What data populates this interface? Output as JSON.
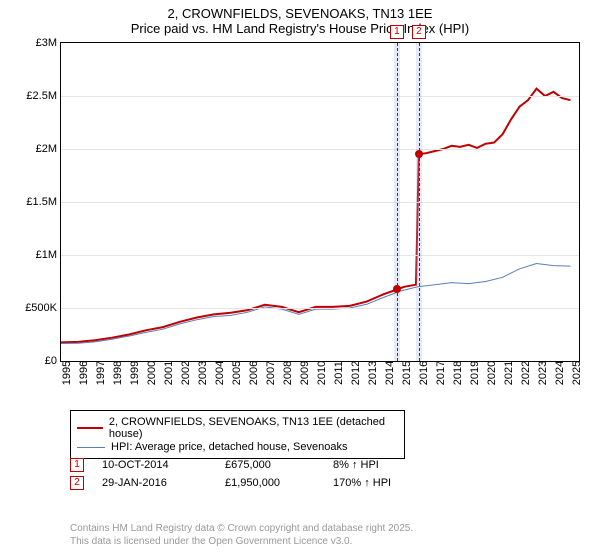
{
  "title": {
    "line1": "2, CROWNFIELDS, SEVENOAKS, TN13 1EE",
    "line2": "Price paid vs. HM Land Registry's House Price Index (HPI)"
  },
  "chart": {
    "type": "line",
    "background_color": "#ffffff",
    "grid_color": "#e5e5e5",
    "border_color": "#000000",
    "xlim": [
      1995,
      2025.5
    ],
    "ylim": [
      0,
      3000000
    ],
    "yticks": [
      {
        "value": 0,
        "label": "£0"
      },
      {
        "value": 500000,
        "label": "£500K"
      },
      {
        "value": 1000000,
        "label": "£1M"
      },
      {
        "value": 1500000,
        "label": "£1.5M"
      },
      {
        "value": 2000000,
        "label": "£2M"
      },
      {
        "value": 2500000,
        "label": "£2.5M"
      },
      {
        "value": 3000000,
        "label": "£3M"
      }
    ],
    "xticks": [
      1995,
      1996,
      1997,
      1998,
      1999,
      2000,
      2001,
      2002,
      2003,
      2004,
      2005,
      2006,
      2007,
      2008,
      2009,
      2010,
      2011,
      2012,
      2013,
      2014,
      2015,
      2016,
      2017,
      2018,
      2019,
      2020,
      2021,
      2022,
      2023,
      2024,
      2025
    ],
    "series": [
      {
        "name": "price_paid",
        "label": "2, CROWNFIELDS, SEVENOAKS, TN13 1EE (detached house)",
        "color": "#c00000",
        "line_width": 2,
        "points": [
          [
            1995,
            175000
          ],
          [
            1996,
            180000
          ],
          [
            1997,
            195000
          ],
          [
            1998,
            220000
          ],
          [
            1999,
            250000
          ],
          [
            2000,
            290000
          ],
          [
            2001,
            320000
          ],
          [
            2002,
            370000
          ],
          [
            2003,
            410000
          ],
          [
            2004,
            440000
          ],
          [
            2005,
            455000
          ],
          [
            2006,
            480000
          ],
          [
            2007,
            530000
          ],
          [
            2008,
            510000
          ],
          [
            2009,
            460000
          ],
          [
            2010,
            510000
          ],
          [
            2011,
            510000
          ],
          [
            2012,
            520000
          ],
          [
            2013,
            560000
          ],
          [
            2014,
            630000
          ],
          [
            2014.8,
            675000
          ],
          [
            2015.2,
            700000
          ],
          [
            2015.9,
            720000
          ],
          [
            2016.07,
            1950000
          ],
          [
            2016.5,
            1960000
          ],
          [
            2017,
            1980000
          ],
          [
            2017.5,
            2000000
          ],
          [
            2018,
            2030000
          ],
          [
            2018.5,
            2020000
          ],
          [
            2019,
            2040000
          ],
          [
            2019.5,
            2010000
          ],
          [
            2020,
            2050000
          ],
          [
            2020.5,
            2060000
          ],
          [
            2021,
            2140000
          ],
          [
            2021.5,
            2280000
          ],
          [
            2022,
            2400000
          ],
          [
            2022.5,
            2460000
          ],
          [
            2023,
            2570000
          ],
          [
            2023.5,
            2500000
          ],
          [
            2024,
            2540000
          ],
          [
            2024.5,
            2480000
          ],
          [
            2025,
            2460000
          ]
        ]
      },
      {
        "name": "hpi",
        "label": "HPI: Average price, detached house, Sevenoaks",
        "color": "#5a7db8",
        "line_width": 1,
        "points": [
          [
            1995,
            165000
          ],
          [
            1996,
            168000
          ],
          [
            1997,
            180000
          ],
          [
            1998,
            205000
          ],
          [
            1999,
            235000
          ],
          [
            2000,
            270000
          ],
          [
            2001,
            300000
          ],
          [
            2002,
            350000
          ],
          [
            2003,
            390000
          ],
          [
            2004,
            420000
          ],
          [
            2005,
            430000
          ],
          [
            2006,
            460000
          ],
          [
            2007,
            510000
          ],
          [
            2008,
            490000
          ],
          [
            2009,
            440000
          ],
          [
            2010,
            490000
          ],
          [
            2011,
            490000
          ],
          [
            2012,
            500000
          ],
          [
            2013,
            535000
          ],
          [
            2014,
            600000
          ],
          [
            2015,
            660000
          ],
          [
            2016,
            700000
          ],
          [
            2017,
            720000
          ],
          [
            2018,
            740000
          ],
          [
            2019,
            730000
          ],
          [
            2020,
            750000
          ],
          [
            2021,
            790000
          ],
          [
            2022,
            870000
          ],
          [
            2023,
            920000
          ],
          [
            2024,
            900000
          ],
          [
            2025,
            895000
          ]
        ]
      }
    ],
    "sale_markers": [
      {
        "num": "1",
        "x": 2014.78,
        "y": 675000,
        "band_start": 2014.6,
        "band_end": 2014.95
      },
      {
        "num": "2",
        "x": 2016.07,
        "y": 1950000,
        "band_start": 2015.9,
        "band_end": 2016.25
      }
    ]
  },
  "legend": {
    "item1": "2, CROWNFIELDS, SEVENOAKS, TN13 1EE (detached house)",
    "item2": "HPI: Average price, detached house, Sevenoaks"
  },
  "sales": [
    {
      "num": "1",
      "date": "10-OCT-2014",
      "price": "£675,000",
      "diff": "8% ↑ HPI"
    },
    {
      "num": "2",
      "date": "29-JAN-2016",
      "price": "£1,950,000",
      "diff": "170% ↑ HPI"
    }
  ],
  "footer": {
    "line1": "Contains HM Land Registry data © Crown copyright and database right 2025.",
    "line2": "This data is licensed under the Open Government Licence v3.0."
  }
}
